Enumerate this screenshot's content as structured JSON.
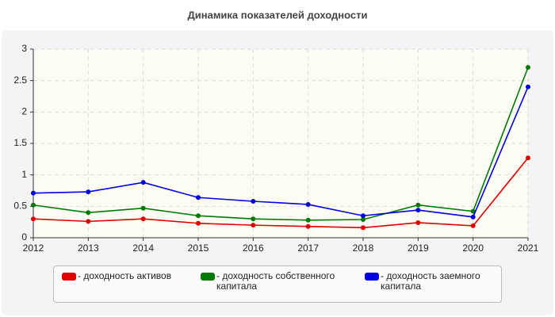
{
  "chart_data": {
    "type": "line",
    "title": "Динамика показателей доходности",
    "x": [
      2012,
      2013,
      2014,
      2015,
      2016,
      2017,
      2018,
      2019,
      2020,
      2021
    ],
    "xlim": [
      2012,
      2021
    ],
    "xticks": [
      2012,
      2013,
      2014,
      2015,
      2016,
      2017,
      2018,
      2019,
      2020,
      2021
    ],
    "ylim": [
      0,
      3
    ],
    "yticks": [
      0,
      0.5,
      1,
      1.5,
      2,
      2.5,
      3
    ],
    "grid": true,
    "series": [
      {
        "name": "- доходность активов",
        "color": "#e00000",
        "values": [
          0.3,
          0.26,
          0.3,
          0.23,
          0.2,
          0.18,
          0.16,
          0.24,
          0.19,
          1.27
        ]
      },
      {
        "name": "- доходность собственного капитала",
        "color": "#007a00",
        "values": [
          0.52,
          0.4,
          0.47,
          0.35,
          0.3,
          0.28,
          0.29,
          0.52,
          0.42,
          2.71
        ]
      },
      {
        "name": "- доходность заемного капитала",
        "color": "#0000e0",
        "values": [
          0.71,
          0.73,
          0.88,
          0.64,
          0.58,
          0.53,
          0.35,
          0.44,
          0.33,
          2.4
        ]
      }
    ]
  }
}
